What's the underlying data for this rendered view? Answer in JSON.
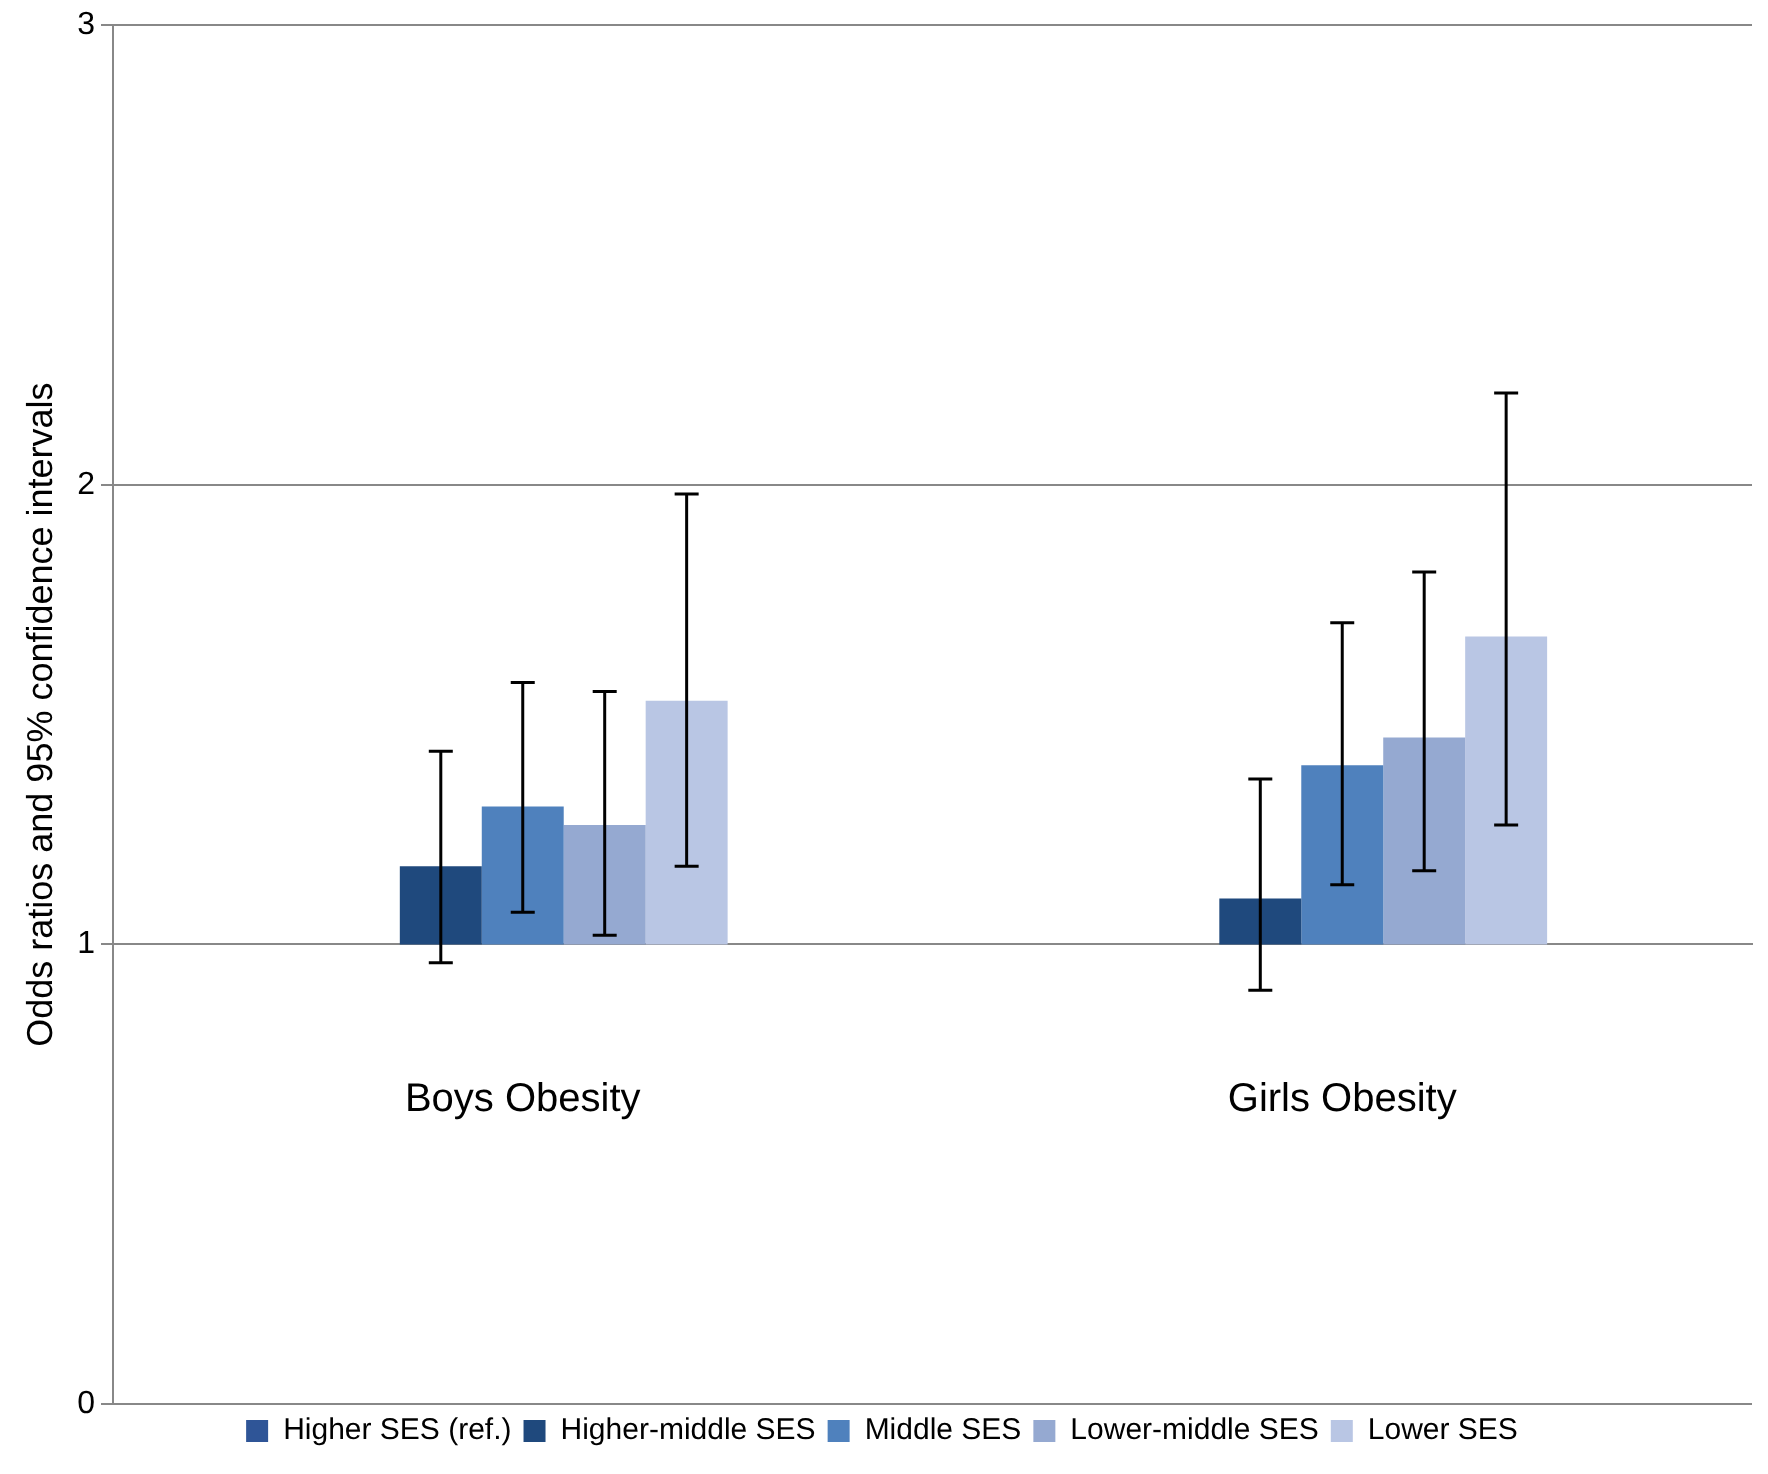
{
  "chart_data": {
    "type": "bar",
    "ylabel": "Odds ratios and 95% confidence intervals",
    "categories": [
      "Boys Obesity",
      "Girls Obesity"
    ],
    "ylim": [
      0,
      3
    ],
    "yticks": [
      0,
      1,
      2,
      3
    ],
    "grid": "y",
    "legend": "bottom",
    "series": [
      {
        "name": "Higher SES (ref.)",
        "color": "#2f5597",
        "values": [
          null,
          null
        ]
      },
      {
        "name": "Higher-middle SES",
        "color": "#1f497d",
        "base": [
          1,
          1
        ],
        "values": [
          0.17,
          0.1
        ],
        "errors": [
          [
            0.96,
            1.42
          ],
          [
            0.9,
            1.36
          ]
        ]
      },
      {
        "name": "Middle SES",
        "color": "#4f81bd",
        "base": [
          1,
          1
        ],
        "values": [
          0.3,
          0.39
        ],
        "errors": [
          [
            1.07,
            1.57
          ],
          [
            1.13,
            1.7
          ]
        ]
      },
      {
        "name": "Lower-middle SES",
        "color": "#95a9d1",
        "base": [
          1,
          1
        ],
        "values": [
          0.26,
          0.45
        ],
        "errors": [
          [
            1.02,
            1.55
          ],
          [
            1.16,
            1.81
          ]
        ]
      },
      {
        "name": "Lower SES",
        "color": "#b9c6e4",
        "base": [
          1,
          1
        ],
        "values": [
          0.53,
          0.67
        ],
        "errors": [
          [
            1.17,
            1.98
          ],
          [
            1.26,
            2.2
          ]
        ]
      }
    ]
  }
}
